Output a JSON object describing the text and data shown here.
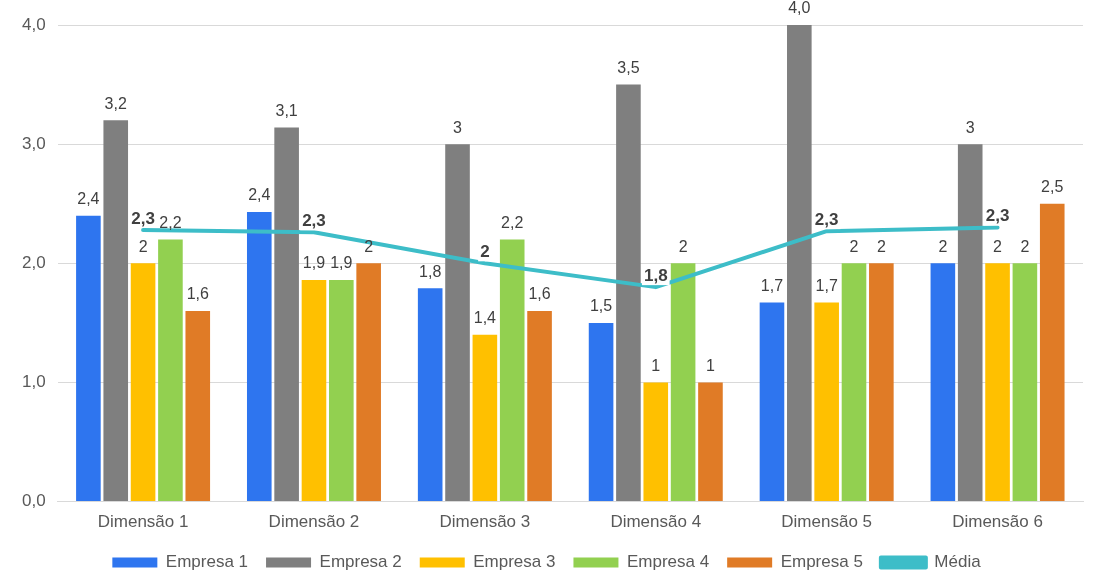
{
  "chart_data": {
    "type": "bar",
    "categories": [
      "Dimensão 1",
      "Dimensão 2",
      "Dimensão 3",
      "Dimensão 4",
      "Dimensão 5",
      "Dimensão 6"
    ],
    "series": [
      {
        "name": "Empresa 1",
        "color": "#2e75ef",
        "values": [
          2.4,
          2.43,
          1.79,
          1.5,
          1.67,
          2.0
        ],
        "value_labels": [
          "2,4",
          "2,4",
          "1,8",
          "1,5",
          "1,7",
          "2"
        ]
      },
      {
        "name": "Empresa 2",
        "color": "#7f7f7f",
        "values": [
          3.2,
          3.14,
          3.0,
          3.5,
          4.0,
          3.0
        ],
        "value_labels": [
          "3,2",
          "3,1",
          "3",
          "3,5",
          "4,0",
          "3"
        ]
      },
      {
        "name": "Empresa 3",
        "color": "#ffc000",
        "values": [
          2.0,
          1.86,
          1.4,
          1.0,
          1.67,
          2.0
        ],
        "value_labels": [
          "2",
          "1,9",
          "1,4",
          "1",
          "1,7",
          "2"
        ]
      },
      {
        "name": "Empresa 4",
        "color": "#92d050",
        "values": [
          2.2,
          1.86,
          2.2,
          2.0,
          2.0,
          2.0
        ],
        "value_labels": [
          "2,2",
          "1,9",
          "2,2",
          "2",
          "2",
          "2"
        ]
      },
      {
        "name": "Empresa 5",
        "color": "#e07b26",
        "values": [
          1.6,
          2.0,
          1.6,
          1.0,
          2.0,
          2.5
        ],
        "value_labels": [
          "1,6",
          "2",
          "1,6",
          "1",
          "2",
          "2,5"
        ]
      },
      {
        "name": "Média",
        "type": "line",
        "color": "#3dbdc8",
        "values": [
          2.28,
          2.26,
          2.0,
          1.8,
          2.27,
          2.3
        ],
        "value_labels": [
          "2,3",
          "2,3",
          "2",
          "1,8",
          "2,3",
          "2,3"
        ]
      }
    ],
    "ylim": [
      0,
      4
    ],
    "yticks": [
      {
        "value": 0,
        "label": "0,0"
      },
      {
        "value": 1,
        "label": "1,0"
      },
      {
        "value": 2,
        "label": "2,0"
      },
      {
        "value": 3,
        "label": "3,0"
      },
      {
        "value": 4,
        "label": "4,0"
      }
    ],
    "grid": "y",
    "legend": "bottom",
    "marker": "none"
  }
}
